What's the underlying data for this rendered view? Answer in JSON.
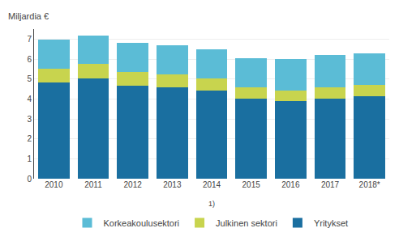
{
  "chart_data": {
    "type": "bar",
    "stacked": true,
    "ylabel": "Miljardia €",
    "categories": [
      "2010",
      "2011",
      "2012",
      "2013",
      "2014",
      "2015",
      "2016",
      "2017",
      "2018*"
    ],
    "series": [
      {
        "name": "Yritykset",
        "color": "#1a6fa0",
        "values": [
          4.83,
          5.04,
          4.68,
          4.59,
          4.41,
          4.03,
          3.91,
          4.03,
          4.12
        ]
      },
      {
        "name": "Julkinen sektori",
        "color": "#c8d44e",
        "values": [
          0.68,
          0.73,
          0.67,
          0.63,
          0.6,
          0.57,
          0.52,
          0.57,
          0.6
        ]
      },
      {
        "name": "Korkeakoulusektori",
        "color": "#5bbcd6",
        "values": [
          1.45,
          1.4,
          1.48,
          1.45,
          1.47,
          1.45,
          1.55,
          1.59,
          1.58
        ]
      }
    ],
    "annotations": [
      "1)"
    ],
    "ylim": [
      0,
      7.5
    ],
    "yticks": [
      0,
      1,
      2,
      3,
      4,
      5,
      6,
      7
    ],
    "grid": true,
    "legend": "bottom"
  }
}
